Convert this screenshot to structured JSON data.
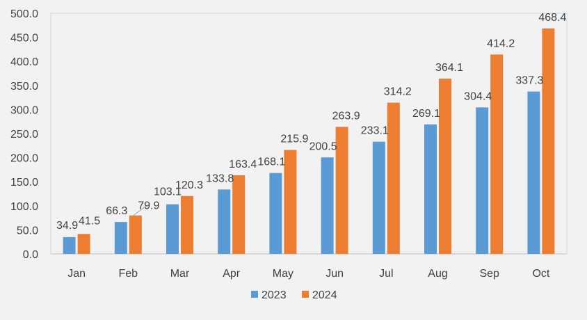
{
  "chart_data": {
    "type": "bar",
    "title": "",
    "xlabel": "",
    "ylabel": "",
    "categories": [
      "Jan",
      "Feb",
      "Mar",
      "Apr",
      "May",
      "Jun",
      "Jul",
      "Aug",
      "Sep",
      "Oct"
    ],
    "series": [
      {
        "name": "2023",
        "color": "#5b9bd5",
        "values": [
          34.9,
          66.3,
          103.1,
          133.8,
          168.1,
          200.5,
          233.1,
          269.1,
          304.4,
          337.3
        ],
        "labels": [
          "34.9",
          "66.3",
          "103.1",
          "133.8",
          "168.1",
          "200.5",
          "233.1",
          "269.1",
          "304.4",
          "337.3"
        ]
      },
      {
        "name": "2024",
        "color": "#ed7d31",
        "values": [
          41.5,
          79.9,
          120.3,
          163.4,
          215.9,
          263.9,
          314.2,
          364.1,
          414.2,
          468.4
        ],
        "labels": [
          "41.5",
          "79.9",
          "120.3",
          "163.4",
          "215.9",
          "263.9",
          "314.2",
          "364.1",
          "414.2",
          "468.4"
        ]
      }
    ],
    "ylim": [
      0,
      500
    ],
    "yticks": [
      "0.0",
      "50.0",
      "100.0",
      "150.0",
      "200.0",
      "250.0",
      "300.0",
      "350.0",
      "400.0",
      "450.0",
      "500.0"
    ],
    "grid": false,
    "legend_position": "bottom"
  }
}
